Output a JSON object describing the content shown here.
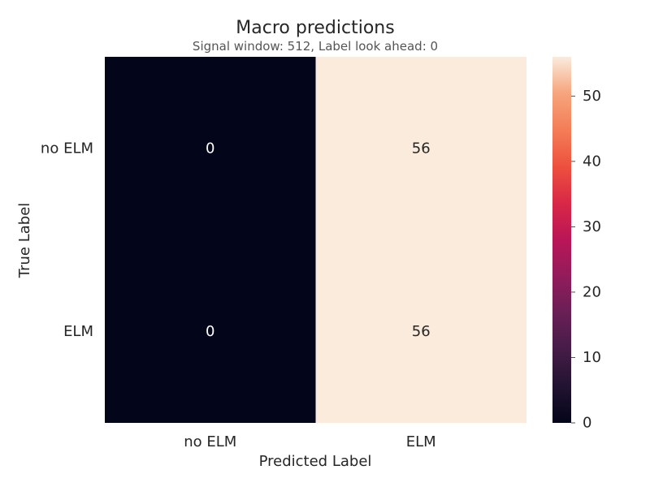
{
  "chart_data": {
    "type": "heatmap",
    "title": "Macro predictions",
    "subtitle": "Signal window: 512, Label look ahead: 0",
    "xlabel": "Predicted Label",
    "ylabel": "True Label",
    "x_categories": [
      "no ELM",
      "ELM"
    ],
    "y_categories": [
      "no ELM",
      "ELM"
    ],
    "values": [
      [
        0,
        56
      ],
      [
        0,
        56
      ]
    ],
    "colorbar": {
      "range": [
        0,
        56
      ],
      "ticks": [
        0,
        10,
        20,
        30,
        40,
        50
      ],
      "colormap": "rocket",
      "low_color": "#03051a",
      "high_color": "#faebdd"
    },
    "annotations_shown": true,
    "grid": false
  }
}
